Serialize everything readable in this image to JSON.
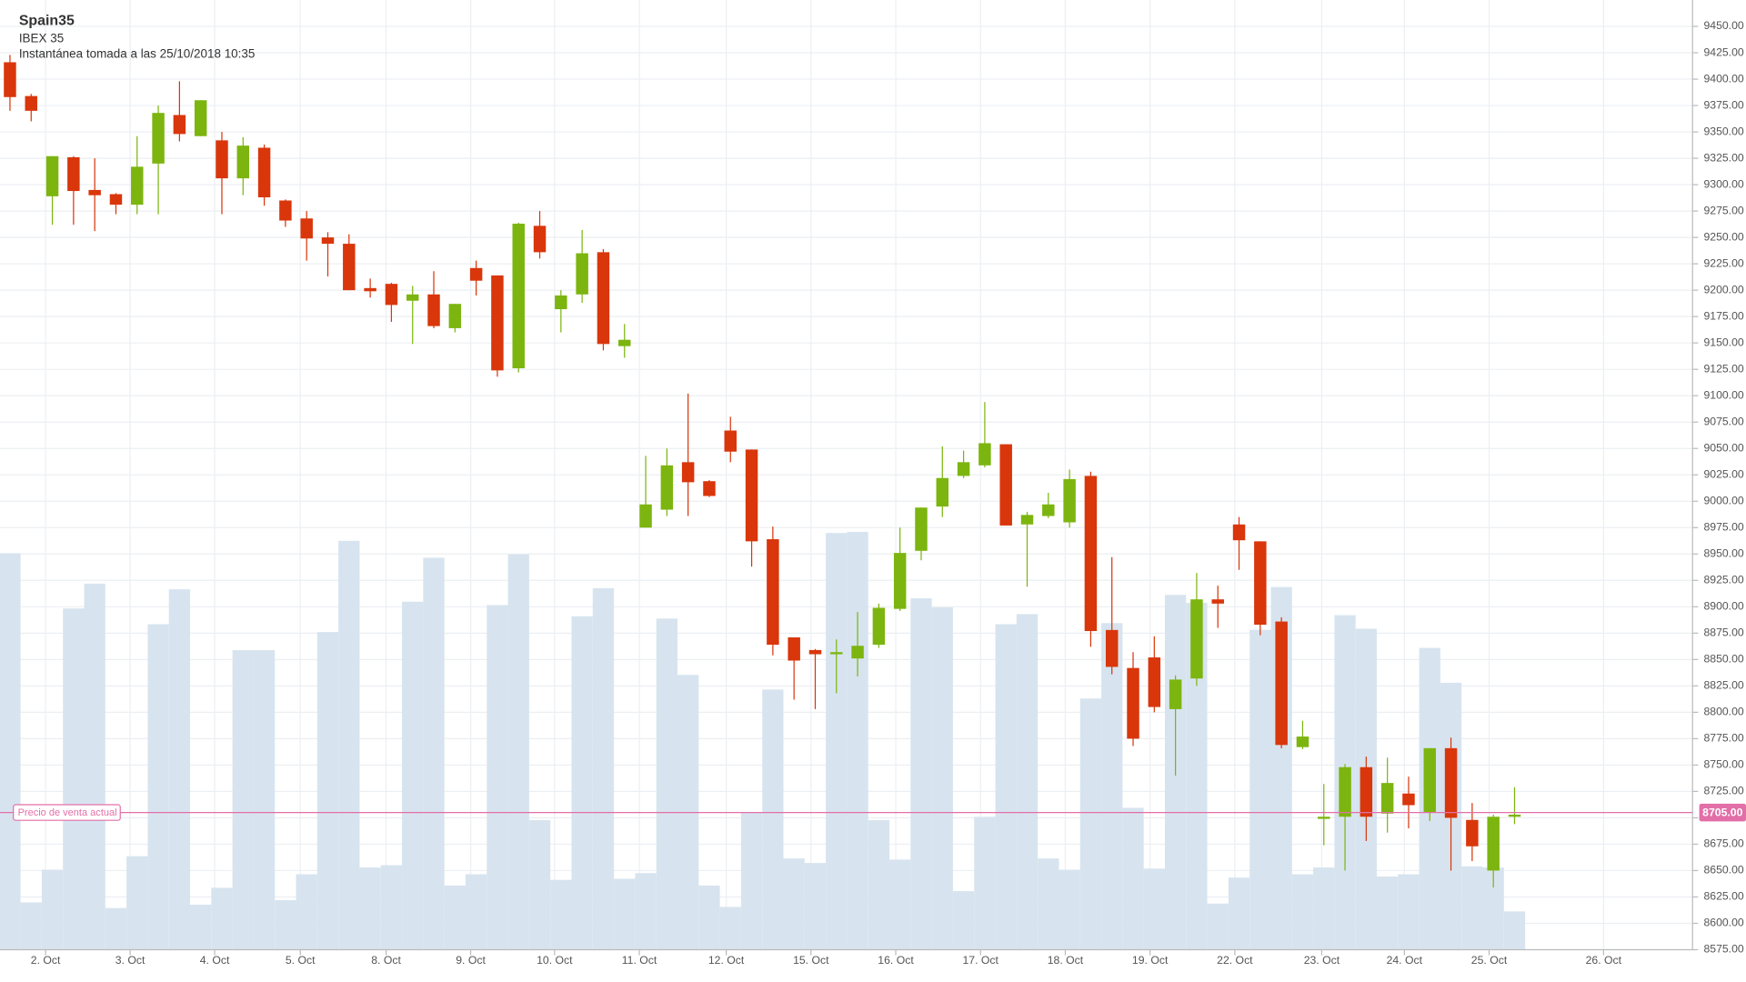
{
  "chart_data": {
    "type": "candlestick",
    "title": "Spain35",
    "subtitle": "IBEX 35",
    "snapshot": "Instantánea tomada a las 25/10/2018 10:35",
    "up_color": "#7cb50f",
    "down_color": "#d9360b",
    "volume_color": "#d7e4ef",
    "grid": true,
    "open": [
      9416,
      9384,
      9289,
      9326,
      9295,
      9291,
      9281,
      9320,
      9366,
      9346,
      9342,
      9306,
      9335,
      9285,
      9268,
      9250,
      9244,
      9202,
      9206,
      9190,
      9196,
      9164,
      9221,
      9214,
      9126,
      9261,
      9182,
      9196,
      9236,
      9147,
      8975,
      8992,
      9037,
      9019,
      9067,
      9049,
      8964,
      8871,
      8859,
      8855,
      8851,
      8864,
      8898,
      8953,
      8995,
      9024,
      9034,
      9054,
      8978,
      8986,
      8980,
      9024,
      8878,
      8842,
      8852,
      8803,
      8832,
      8907,
      8978,
      8962,
      8886,
      8767,
      8699,
      8701,
      8748,
      8704,
      8723,
      8705,
      8766,
      8698,
      8650,
      8701
    ],
    "high": [
      9423,
      9386,
      9327,
      9327,
      9325,
      9292,
      9346,
      9375,
      9398,
      9380,
      9350,
      9345,
      9338,
      9286,
      9275,
      9255,
      9253,
      9211,
      9207,
      9204,
      9218,
      9187,
      9228,
      9214,
      9264,
      9275,
      9200,
      9257,
      9239,
      9168,
      9043,
      9050,
      9102,
      9020,
      9080,
      9049,
      8976,
      8871,
      8860,
      8869,
      8895,
      8903,
      8975,
      8994,
      9052,
      9048,
      9094,
      9054,
      8990,
      9008,
      9030,
      9028,
      8947,
      8857,
      8872,
      8835,
      8932,
      8920,
      8985,
      8962,
      8890,
      8792,
      8732,
      8751,
      8758,
      8757,
      8739,
      8766,
      8776,
      8714,
      8703,
      8729
    ],
    "low": [
      9370,
      9360,
      9262,
      9262,
      9256,
      9272,
      9272,
      9272,
      9341,
      9346,
      9272,
      9290,
      9280,
      9260,
      9228,
      9213,
      9200,
      9193,
      9170,
      9149,
      9164,
      9160,
      9195,
      9118,
      9122,
      9230,
      9160,
      9188,
      9143,
      9136,
      8975,
      8986,
      8986,
      9004,
      9037,
      8938,
      8854,
      8812,
      8803,
      8818,
      8834,
      8861,
      8896,
      8944,
      8985,
      9022,
      9032,
      8977,
      8919,
      8984,
      8975,
      8862,
      8836,
      8768,
      8800,
      8740,
      8825,
      8880,
      8935,
      8873,
      8766,
      8765,
      8674,
      8650,
      8678,
      8686,
      8690,
      8697,
      8650,
      8659,
      8634,
      8694
    ],
    "close": [
      9383,
      9370,
      9327,
      9294,
      9290,
      9281,
      9317,
      9368,
      9348,
      9380,
      9306,
      9337,
      9288,
      9266,
      9249,
      9244,
      9200,
      9199,
      9186,
      9196,
      9166,
      9187,
      9209,
      9124,
      9263,
      9236,
      9195,
      9235,
      9149,
      9153,
      8997,
      9034,
      9018,
      9005,
      9047,
      8962,
      8864,
      8849,
      8855,
      8857,
      8863,
      8899,
      8951,
      8994,
      9022,
      9037,
      9055,
      8977,
      8987,
      8997,
      9021,
      8877,
      8843,
      8775,
      8805,
      8831,
      8907,
      8903,
      8963,
      8883,
      8769,
      8777,
      8701,
      8748,
      8701,
      8733,
      8712,
      8766,
      8700,
      8673,
      8701,
      8703
    ],
    "volume": [
      352,
      42,
      71,
      303,
      325,
      37,
      83,
      289,
      320,
      40,
      55,
      266,
      266,
      44,
      67,
      282,
      363,
      73,
      75,
      309,
      348,
      57,
      67,
      306,
      351,
      115,
      62,
      296,
      321,
      63,
      68,
      294,
      244,
      57,
      38,
      122,
      231,
      81,
      77,
      370,
      371,
      115,
      80,
      312,
      304,
      52,
      118,
      289,
      298,
      81,
      71,
      223,
      290,
      126,
      72,
      315,
      308,
      41,
      64,
      284,
      322,
      67,
      73,
      297,
      285,
      65,
      67,
      268,
      237,
      74,
      73,
      34
    ],
    "xlim": [
      -0.47,
      79.4
    ],
    "xticks": [
      {
        "value": 1.68,
        "label": "2. Oct"
      },
      {
        "value": 5.67,
        "label": "3. Oct"
      },
      {
        "value": 9.66,
        "label": "4. Oct"
      },
      {
        "value": 13.7,
        "label": "5. Oct"
      },
      {
        "value": 17.75,
        "label": "8. Oct"
      },
      {
        "value": 21.74,
        "label": "9. Oct"
      },
      {
        "value": 25.7,
        "label": "10. Oct"
      },
      {
        "value": 29.7,
        "label": "11. Oct"
      },
      {
        "value": 33.8,
        "label": "12. Oct"
      },
      {
        "value": 37.8,
        "label": "15. Oct"
      },
      {
        "value": 41.8,
        "label": "16. Oct"
      },
      {
        "value": 45.8,
        "label": "17. Oct"
      },
      {
        "value": 49.8,
        "label": "18. Oct"
      },
      {
        "value": 53.8,
        "label": "19. Oct"
      },
      {
        "value": 57.8,
        "label": "22. Oct"
      },
      {
        "value": 61.9,
        "label": "23. Oct"
      },
      {
        "value": 65.8,
        "label": "24. Oct"
      },
      {
        "value": 69.8,
        "label": "25. Oct"
      },
      {
        "value": 75.2,
        "label": "26. Oct"
      }
    ],
    "ylim": [
      8575,
      9475
    ],
    "yticks": [
      {
        "value": 8575,
        "label": "8575.00"
      },
      {
        "value": 8600,
        "label": "8600.00"
      },
      {
        "value": 8625,
        "label": "8625.00"
      },
      {
        "value": 8650,
        "label": "8650.00"
      },
      {
        "value": 8675,
        "label": "8675.00"
      },
      {
        "value": 8700,
        "label": "8700.00"
      },
      {
        "value": 8725,
        "label": "8725.00"
      },
      {
        "value": 8750,
        "label": "8750.00"
      },
      {
        "value": 8775,
        "label": "8775.00"
      },
      {
        "value": 8800,
        "label": "8800.00"
      },
      {
        "value": 8825,
        "label": "8825.00"
      },
      {
        "value": 8850,
        "label": "8850.00"
      },
      {
        "value": 8875,
        "label": "8875.00"
      },
      {
        "value": 8900,
        "label": "8900.00"
      },
      {
        "value": 8925,
        "label": "8925.00"
      },
      {
        "value": 8950,
        "label": "8950.00"
      },
      {
        "value": 8975,
        "label": "8975.00"
      },
      {
        "value": 9000,
        "label": "9000.00"
      },
      {
        "value": 9025,
        "label": "9025.00"
      },
      {
        "value": 9050,
        "label": "9050.00"
      },
      {
        "value": 9075,
        "label": "9075.00"
      },
      {
        "value": 9100,
        "label": "9100.00"
      },
      {
        "value": 9125,
        "label": "9125.00"
      },
      {
        "value": 9150,
        "label": "9150.00"
      },
      {
        "value": 9175,
        "label": "9175.00"
      },
      {
        "value": 9200,
        "label": "9200.00"
      },
      {
        "value": 9225,
        "label": "9225.00"
      },
      {
        "value": 9250,
        "label": "9250.00"
      },
      {
        "value": 9275,
        "label": "9275.00"
      },
      {
        "value": 9300,
        "label": "9300.00"
      },
      {
        "value": 9325,
        "label": "9325.00"
      },
      {
        "value": 9350,
        "label": "9350.00"
      },
      {
        "value": 9375,
        "label": "9375.00"
      },
      {
        "value": 9400,
        "label": "9400.00"
      },
      {
        "value": 9425,
        "label": "9425.00"
      },
      {
        "value": 9450,
        "label": "9450.00"
      }
    ],
    "price_line": {
      "value": 8705,
      "label": "8705.00",
      "text": "Precio de venta actual",
      "color": "#e36fa8"
    }
  }
}
